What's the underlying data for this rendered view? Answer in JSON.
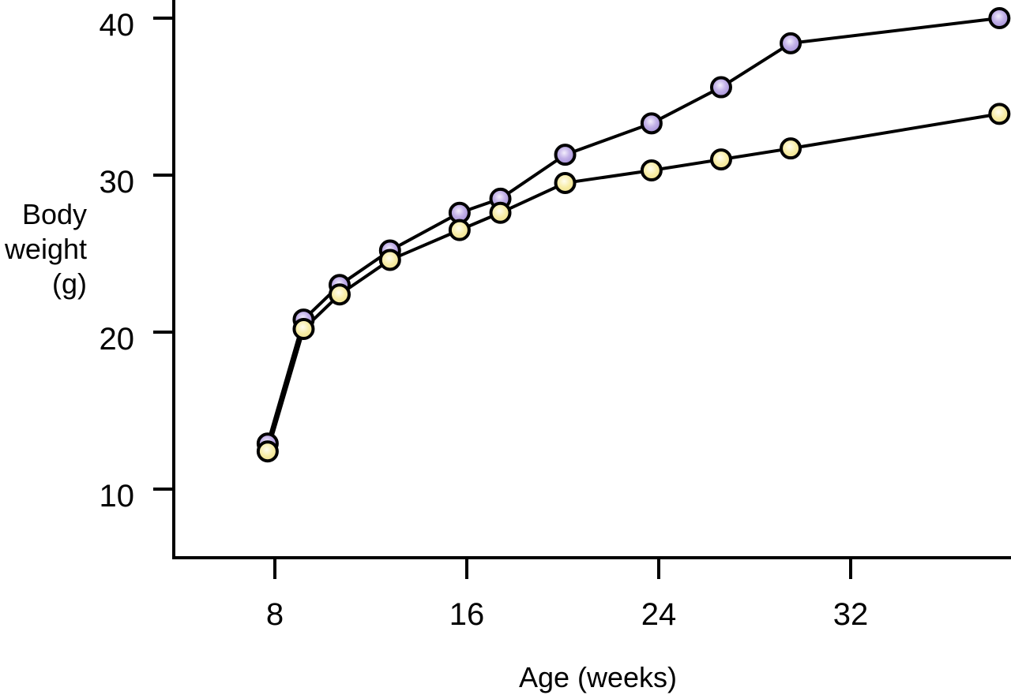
{
  "chart_data": {
    "type": "line",
    "title": "",
    "xlabel": "Age (weeks)",
    "ylabel": "Body weight (g)",
    "ylabel_lines": [
      "Body",
      "weight",
      "(g)"
    ],
    "xticks": [
      8,
      16,
      24,
      32
    ],
    "yticks": [
      10,
      20,
      30,
      40
    ],
    "xlim": [
      3.8,
      38.7
    ],
    "ylim": [
      5.6,
      41.2
    ],
    "grid": false,
    "legend": "none",
    "x": [
      7.7,
      9.2,
      10.7,
      12.8,
      15.7,
      17.4,
      20.1,
      23.7,
      26.6,
      29.5,
      38.2
    ],
    "series": [
      {
        "name": "series-1-purple-markers",
        "marker_color": "#b3a0e0",
        "values": [
          12.9,
          20.8,
          23.0,
          25.2,
          27.6,
          28.5,
          31.3,
          33.3,
          35.6,
          38.4,
          40.0
        ]
      },
      {
        "name": "series-2-yellow-markers",
        "marker_color": "#f5eba2",
        "values": [
          12.4,
          20.2,
          22.4,
          24.6,
          26.5,
          27.6,
          29.5,
          30.3,
          31.0,
          31.7,
          33.9
        ]
      }
    ],
    "colors": {
      "line": "#000000",
      "axis": "#000000",
      "text": "#000000",
      "background": "#ffffff",
      "series1_marker_edge": "#a08ad4",
      "series1_marker_center": "#f3eefc",
      "series2_marker_edge": "#efe18d",
      "series2_marker_center": "#fffdf0"
    }
  }
}
